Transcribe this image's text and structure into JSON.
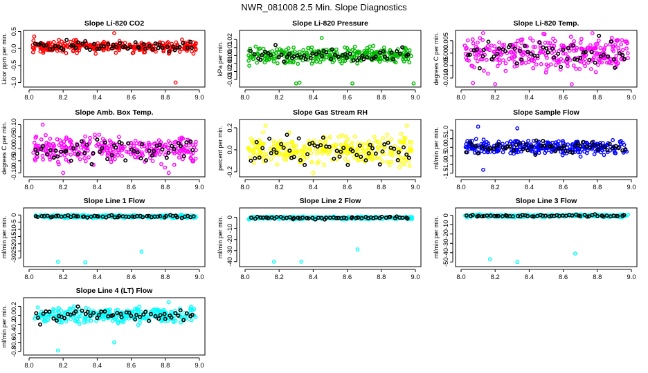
{
  "figure_title": "NWR_081008  2.5 Min. Slope Diagnostics",
  "chart_data": [
    {
      "type": "scatter",
      "title": "Slope Li-820 CO2",
      "ylabel": "Licor ppm per min.",
      "xlim": [
        8.0,
        9.0
      ],
      "xticks": [
        8.0,
        8.2,
        8.4,
        8.6,
        8.8,
        9.0
      ],
      "xtick_labels": [
        "8.0",
        "8.2",
        "8.4",
        "8.6",
        "8.8",
        "9.0"
      ],
      "ylim": [
        -1.05,
        0.45
      ],
      "yticks": [
        -1.0,
        -0.5,
        0.0,
        0.5
      ],
      "ytick_labels": [
        "-1.0",
        "-0.5",
        "0.0",
        "0.5"
      ],
      "series_color": "#ff0000",
      "overlay_color": "#000000",
      "center": 0.05,
      "spread": 0.12,
      "outliers": [
        [
          8.86,
          -1.0
        ],
        [
          8.5,
          0.45
        ],
        [
          8.03,
          0.35
        ]
      ]
    },
    {
      "type": "scatter",
      "title": "Slope Li-820 Pressure",
      "ylabel": "kPa per min.",
      "xlim": [
        8.0,
        9.0
      ],
      "xticks": [
        8.0,
        8.2,
        8.4,
        8.6,
        8.8,
        9.0
      ],
      "xtick_labels": [
        "8.0",
        "8.2",
        "8.4",
        "8.6",
        "8.8",
        "9.0"
      ],
      "ylim": [
        -0.036,
        0.028
      ],
      "yticks": [
        -0.03,
        -0.02,
        -0.01,
        0.0,
        0.01,
        0.02
      ],
      "ytick_labels": [
        "-0.03",
        "-0.02",
        "-0.01",
        "0.00",
        "0.01",
        "0.02"
      ],
      "series_color": "#00bb00",
      "overlay_color": "#000000",
      "center": 0.0,
      "spread": 0.007,
      "outliers": [
        [
          8.3,
          -0.035
        ],
        [
          8.45,
          0.022
        ],
        [
          8.63,
          -0.035
        ],
        [
          8.99,
          -0.035
        ],
        [
          8.32,
          -0.034
        ]
      ]
    },
    {
      "type": "scatter",
      "title": "Slope Li-820 Temp.",
      "ylabel": "degrees C per min.",
      "xlim": [
        8.0,
        9.0
      ],
      "xticks": [
        8.0,
        8.2,
        8.4,
        8.6,
        8.8,
        9.0
      ],
      "xtick_labels": [
        "8.0",
        "8.2",
        "8.4",
        "8.6",
        "8.8",
        "9.0"
      ],
      "ylim": [
        -0.0125,
        0.008
      ],
      "yticks": [
        -0.01,
        -0.005,
        0.0,
        0.005
      ],
      "ytick_labels": [
        "-0.010",
        "-0.005",
        "0.000",
        "0.005"
      ],
      "series_color": "#ff00ff",
      "overlay_color": "#000000",
      "center": 0.0,
      "spread": 0.0045,
      "outliers": [
        [
          8.07,
          -0.012
        ],
        [
          8.2,
          -0.0125
        ],
        [
          8.65,
          -0.0125
        ]
      ]
    },
    {
      "type": "scatter",
      "title": "Slope Amb. Box Temp.",
      "ylabel": "degrees C per min.",
      "xlim": [
        8.0,
        9.0
      ],
      "xticks": [
        8.0,
        8.2,
        8.4,
        8.6,
        8.8,
        9.0
      ],
      "xtick_labels": [
        "8.0",
        "8.2",
        "8.4",
        "8.6",
        "8.8",
        "9.0"
      ],
      "ylim": [
        -0.105,
        0.11
      ],
      "yticks": [
        -0.1,
        -0.05,
        0.0,
        0.05,
        0.1
      ],
      "ytick_labels": [
        "-0.10",
        "-0.05",
        "0.00",
        "0.05",
        "0.10"
      ],
      "series_color": "#ff00ff",
      "overlay_color": "#000000",
      "center": 0.0,
      "spread": 0.04,
      "outliers": [
        [
          8.08,
          0.1
        ],
        [
          8.2,
          -0.1
        ],
        [
          8.82,
          -0.1
        ]
      ]
    },
    {
      "type": "scatter",
      "title": "Slope Gas Stream RH",
      "ylabel": "percent per min.",
      "xlim": [
        8.0,
        9.0
      ],
      "xticks": [
        8.0,
        8.2,
        8.4,
        8.6,
        8.8,
        9.0
      ],
      "xtick_labels": [
        "8.0",
        "8.2",
        "8.4",
        "8.6",
        "8.8",
        "9.0"
      ],
      "ylim": [
        -0.22,
        0.25
      ],
      "yticks": [
        -0.2,
        0.0,
        0.2
      ],
      "ytick_labels": [
        "-0.2",
        "0.0",
        "0.2"
      ],
      "series_color": "#ffff00",
      "overlay_color": "#000000",
      "center": 0.0,
      "spread": 0.09,
      "outliers": [
        [
          8.95,
          0.22
        ],
        [
          8.12,
          0.22
        ],
        [
          8.4,
          -0.21
        ]
      ]
    },
    {
      "type": "scatter",
      "title": "Slope Sample Flow",
      "ylabel": "ml/min per min.",
      "xlim": [
        8.0,
        9.0
      ],
      "xticks": [
        8.0,
        8.2,
        8.4,
        8.6,
        8.8,
        9.0
      ],
      "xtick_labels": [
        "8.0",
        "8.2",
        "8.4",
        "8.6",
        "8.8",
        "9.0"
      ],
      "ylim": [
        -1.55,
        1.45
      ],
      "yticks": [
        -1.5,
        -1.0,
        -0.5,
        0.0,
        0.5,
        1.0
      ],
      "ytick_labels": [
        "-1.5",
        "-1.0",
        "-0.5",
        "0.0",
        "0.5",
        "1.0"
      ],
      "series_color": "#0000ff",
      "overlay_color": "#000000",
      "center": 0.0,
      "spread": 0.28,
      "outliers": [
        [
          8.13,
          -1.3
        ],
        [
          8.1,
          1.2
        ],
        [
          8.33,
          1.1
        ]
      ]
    },
    {
      "type": "scatter",
      "title": "Slope Line 1 Flow",
      "ylabel": "ml/min per min.",
      "xlim": [
        8.0,
        9.0
      ],
      "xticks": [
        8.0,
        8.2,
        8.4,
        8.6,
        8.8,
        9.0
      ],
      "xtick_labels": [
        "8.0",
        "8.2",
        "8.4",
        "8.6",
        "8.8",
        "9.0"
      ],
      "ylim": [
        -34,
        3
      ],
      "yticks": [
        -30,
        -25,
        -20,
        -15,
        -10,
        -5,
        0
      ],
      "ytick_labels": [
        "-30",
        "-25",
        "-20",
        "-15",
        "-10",
        "-5",
        "0"
      ],
      "series_color": "#00ffff",
      "overlay_color": "#000000",
      "center": -1.0,
      "spread": 0.7,
      "outliers": [
        [
          8.17,
          -32.5
        ],
        [
          8.33,
          -33
        ],
        [
          8.66,
          -25.5
        ]
      ]
    },
    {
      "type": "scatter",
      "title": "Slope Line 2 Flow",
      "ylabel": "ml/min per min.",
      "xlim": [
        8.0,
        9.0
      ],
      "xticks": [
        8.0,
        8.2,
        8.4,
        8.6,
        8.8,
        9.0
      ],
      "xtick_labels": [
        "8.0",
        "8.2",
        "8.4",
        "8.6",
        "8.8",
        "9.0"
      ],
      "ylim": [
        -42,
        6
      ],
      "yticks": [
        -40,
        -30,
        -20,
        -10,
        0
      ],
      "ytick_labels": [
        "-40",
        "-30",
        "-20",
        "-10",
        "0"
      ],
      "series_color": "#00ffff",
      "overlay_color": "#000000",
      "center": -0.5,
      "spread": 0.9,
      "outliers": [
        [
          8.17,
          -40
        ],
        [
          8.33,
          -40
        ],
        [
          8.66,
          -29
        ]
      ]
    },
    {
      "type": "scatter",
      "title": "Slope Line 3 Flow",
      "ylabel": "ml/min per min.",
      "xlim": [
        8.0,
        9.0
      ],
      "xticks": [
        8.0,
        8.2,
        8.4,
        8.6,
        8.8,
        9.0
      ],
      "xtick_labels": [
        "8.0",
        "8.2",
        "8.4",
        "8.6",
        "8.8",
        "9.0"
      ],
      "ylim": [
        -52,
        5
      ],
      "yticks": [
        -50,
        -40,
        -30,
        -20,
        -10,
        0
      ],
      "ytick_labels": [
        "-50",
        "-40",
        "-30",
        "-20",
        "-10",
        "0"
      ],
      "series_color": "#00ffff",
      "overlay_color": "#000000",
      "center": -0.5,
      "spread": 1.0,
      "outliers": [
        [
          8.17,
          -47
        ],
        [
          8.33,
          -50
        ],
        [
          8.67,
          -41
        ]
      ]
    },
    {
      "type": "scatter",
      "title": "Slope Line 4 (LT) Flow",
      "ylabel": "ml/min per min.",
      "xlim": [
        8.0,
        9.0
      ],
      "xticks": [
        8.0,
        8.2,
        8.4,
        8.6,
        8.8,
        9.0
      ],
      "xtick_labels": [
        "8.0",
        "8.2",
        "8.4",
        "8.6",
        "8.8",
        "9.0"
      ],
      "ylim": [
        -0.82,
        0.33
      ],
      "yticks": [
        -0.8,
        -0.6,
        -0.4,
        -0.2,
        0.0,
        0.2
      ],
      "ytick_labels": [
        "-0.8",
        "-0.6",
        "-0.4",
        "-0.2",
        "0.0",
        "0.2"
      ],
      "series_color": "#00ffff",
      "overlay_color": "#000000",
      "center": 0.0,
      "spread": 0.12,
      "outliers": [
        [
          8.17,
          -0.78
        ],
        [
          8.5,
          -0.6
        ],
        [
          8.82,
          0.29
        ]
      ]
    }
  ]
}
